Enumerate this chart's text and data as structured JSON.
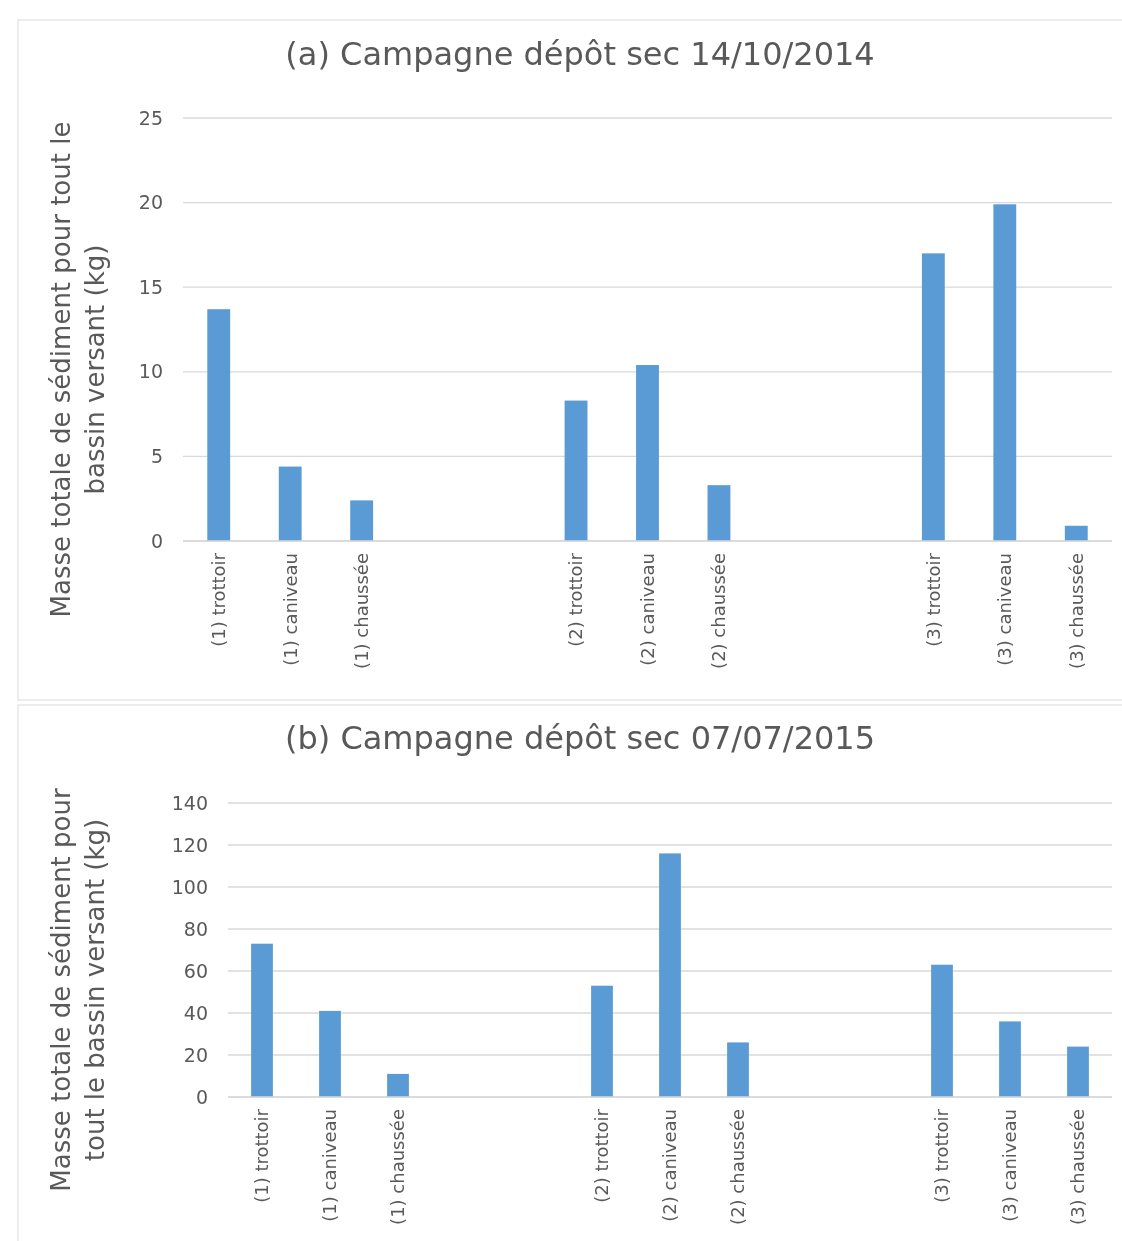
{
  "chart_data": [
    {
      "type": "bar",
      "title": "(a) Campagne dépôt sec 14/10/2014",
      "ylabel": "Masse totale de sédiment pour tout le bassin versant (kg)",
      "categories": [
        "(1) trottoir",
        "(1) caniveau",
        "(1) chaussée",
        null,
        null,
        "(2) trottoir",
        "(2) caniveau",
        "(2) chaussée",
        null,
        null,
        "(3) trottoir",
        "(3) caniveau",
        "(3) chaussée"
      ],
      "values": [
        13.7,
        4.4,
        2.4,
        null,
        null,
        8.3,
        10.4,
        3.3,
        null,
        null,
        17.0,
        19.9,
        0.9
      ],
      "color": "#5b9bd5",
      "ylim": [
        0,
        25
      ],
      "yticks": [
        0,
        5,
        10,
        15,
        20,
        25
      ],
      "grid": "y"
    },
    {
      "type": "bar",
      "title": "(b) Campagne dépôt sec 07/07/2015",
      "ylabel": "Masse totale de sédiment pour tout le bassin versant (kg)",
      "categories": [
        "(1) trottoir",
        "(1) caniveau",
        "(1) chaussée",
        null,
        null,
        "(2) trottoir",
        "(2) caniveau",
        "(2) chaussée",
        null,
        null,
        "(3) trottoir",
        "(3) caniveau",
        "(3) chaussée"
      ],
      "values": [
        73,
        41,
        11,
        null,
        null,
        53,
        116,
        26,
        null,
        null,
        63,
        36,
        24
      ],
      "color": "#5b9bd5",
      "ylim": [
        0,
        140
      ],
      "yticks": [
        0,
        20,
        40,
        60,
        80,
        100,
        120,
        140
      ],
      "grid": "y"
    }
  ]
}
